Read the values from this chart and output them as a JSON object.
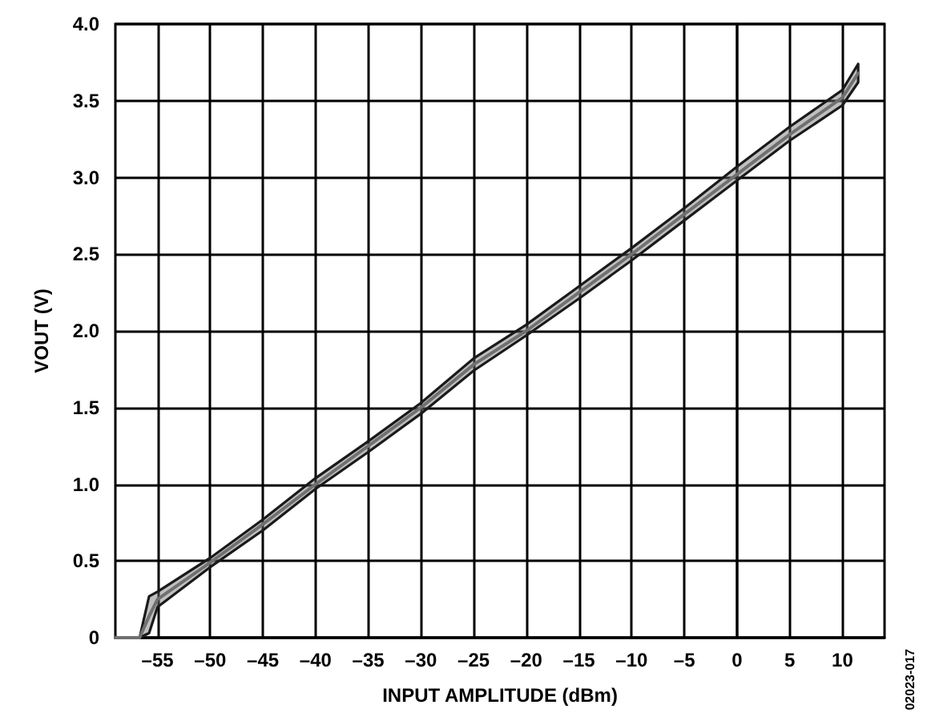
{
  "chart_data": {
    "type": "line",
    "xlabel": "INPUT AMPLITUDE (dBm)",
    "ylabel": "VOUT (V)",
    "annotations": [
      "02023-017"
    ],
    "x": [
      -59,
      -56.7,
      -55.8,
      -55,
      -50,
      -45,
      -40,
      -35,
      -30,
      -25,
      -20,
      -15,
      -10,
      -5,
      0,
      5,
      10,
      11.5
    ],
    "series": [
      {
        "color": "#707070",
        "values": [
          0,
          0,
          0.14,
          0.25,
          0.49,
          0.74,
          1.0,
          1.25,
          1.5,
          1.78,
          2.0,
          2.25,
          2.5,
          2.76,
          3.02,
          3.28,
          3.52,
          3.68
        ],
        "lower": [
          0,
          0,
          0.03,
          0.2,
          0.46,
          0.7,
          0.97,
          1.21,
          1.46,
          1.74,
          1.97,
          2.21,
          2.46,
          2.72,
          2.98,
          3.24,
          3.47,
          3.62
        ],
        "upper": [
          0,
          0,
          0.27,
          0.3,
          0.52,
          0.77,
          1.04,
          1.28,
          1.53,
          1.82,
          2.04,
          2.29,
          2.54,
          2.8,
          3.07,
          3.33,
          3.57,
          3.74
        ]
      }
    ],
    "xlim": [
      -59,
      14
    ],
    "xticks": [
      {
        "value": -55,
        "label": "–55"
      },
      {
        "value": -50,
        "label": "–50"
      },
      {
        "value": -45,
        "label": "–45"
      },
      {
        "value": -40,
        "label": "–40"
      },
      {
        "value": -35,
        "label": "–35"
      },
      {
        "value": -30,
        "label": "–30"
      },
      {
        "value": -25,
        "label": "–25"
      },
      {
        "value": -20,
        "label": "–20"
      },
      {
        "value": -15,
        "label": "–15"
      },
      {
        "value": -10,
        "label": "–10"
      },
      {
        "value": -5,
        "label": "–5"
      },
      0,
      5,
      10
    ],
    "ylim": [
      0,
      4
    ],
    "yticks": [
      0,
      {
        "value": 0.5,
        "label": "0.5"
      },
      {
        "value": 1,
        "label": "1.0"
      },
      {
        "value": 1.5,
        "label": "1.5"
      },
      {
        "value": 2,
        "label": "2.0"
      },
      {
        "value": 2.5,
        "label": "2.5"
      },
      {
        "value": 3,
        "label": "3.0"
      },
      {
        "value": 3.5,
        "label": "3.5"
      },
      {
        "value": 4,
        "label": "4.0"
      }
    ],
    "grid": true,
    "marker": "none",
    "line_style": "solid"
  }
}
